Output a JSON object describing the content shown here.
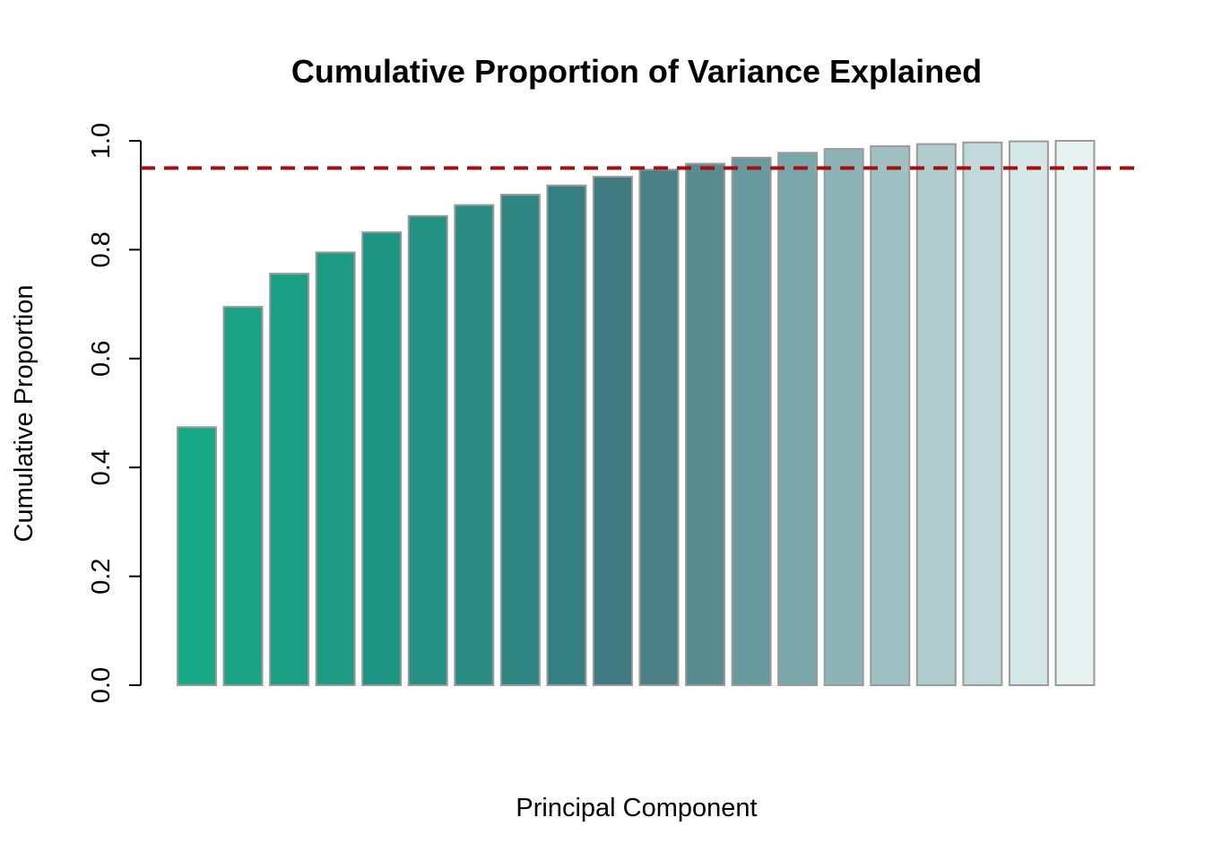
{
  "chart_data": {
    "type": "bar",
    "title": "Cumulative Proportion of Variance Explained",
    "xlabel": "Principal Component",
    "ylabel": "Cumulative Proportion",
    "ylim": [
      0,
      1
    ],
    "yticks": [
      0,
      0.2,
      0.4,
      0.6,
      0.8,
      1
    ],
    "ytick_labels": [
      "0.0",
      "0.2",
      "0.4",
      "0.6",
      "0.8",
      "1.0"
    ],
    "values": [
      0.474,
      0.695,
      0.756,
      0.795,
      0.832,
      0.862,
      0.882,
      0.901,
      0.918,
      0.934,
      0.947,
      0.958,
      0.969,
      0.978,
      0.985,
      0.99,
      0.994,
      0.997,
      0.999,
      1.0
    ],
    "bar_colors": [
      "#17a986",
      "#19a384",
      "#1b9f84",
      "#1d9b83",
      "#1f9683",
      "#249182",
      "#2a8c83",
      "#2f8683",
      "#357f83",
      "#3e7a80",
      "#4b8185",
      "#5a8b8e",
      "#699a9d",
      "#7aa7aa",
      "#8db3b6",
      "#9fc1c3",
      "#b0cccf",
      "#c2d9dc",
      "#d4e6e6",
      "#e8f2f0"
    ],
    "bar_outline_color": "#9a9a9a",
    "reference_line": {
      "y": 0.95,
      "color": "#a50f0f",
      "style": "dashed"
    }
  }
}
